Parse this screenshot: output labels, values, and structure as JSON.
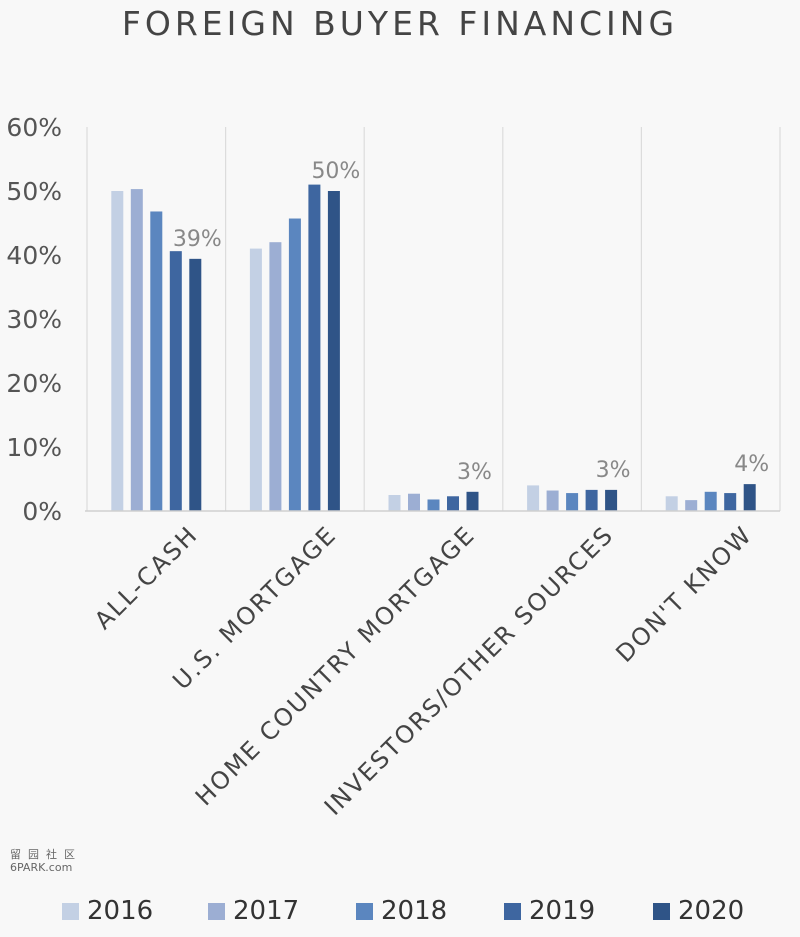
{
  "chart_data": {
    "type": "bar",
    "title": "FOREIGN BUYER FINANCING",
    "categories": [
      "ALL-CASH",
      "U.S. MORTGAGE",
      "HOME COUNTRY MORTGAGE",
      "INVESTORS/OTHER SOURCES",
      "DON'T KNOW"
    ],
    "series": [
      {
        "name": "2016",
        "color": "#c3d0e4",
        "values": [
          50,
          41,
          2.5,
          4,
          2.3
        ]
      },
      {
        "name": "2017",
        "color": "#9caed3",
        "values": [
          50.3,
          42,
          2.7,
          3.2,
          1.7
        ]
      },
      {
        "name": "2018",
        "color": "#5b86bf",
        "values": [
          46.8,
          45.7,
          1.8,
          2.8,
          3
        ]
      },
      {
        "name": "2019",
        "color": "#3e66a0",
        "values": [
          40.6,
          51,
          2.3,
          3.3,
          2.8
        ]
      },
      {
        "name": "2020",
        "color": "#2f5487",
        "values": [
          39.4,
          50,
          3,
          3.3,
          4.2
        ]
      }
    ],
    "data_labels": [
      "39%",
      "50%",
      "3%",
      "3%",
      "4%"
    ],
    "ylim": [
      0,
      60
    ],
    "yticks": [
      "0%",
      "10%",
      "20%",
      "30%",
      "40%",
      "50%",
      "60%"
    ],
    "grid": "vertical separators between categories",
    "legend_position": "bottom"
  },
  "watermark": {
    "line1": "留园社区",
    "line2": "6PARK.com"
  }
}
